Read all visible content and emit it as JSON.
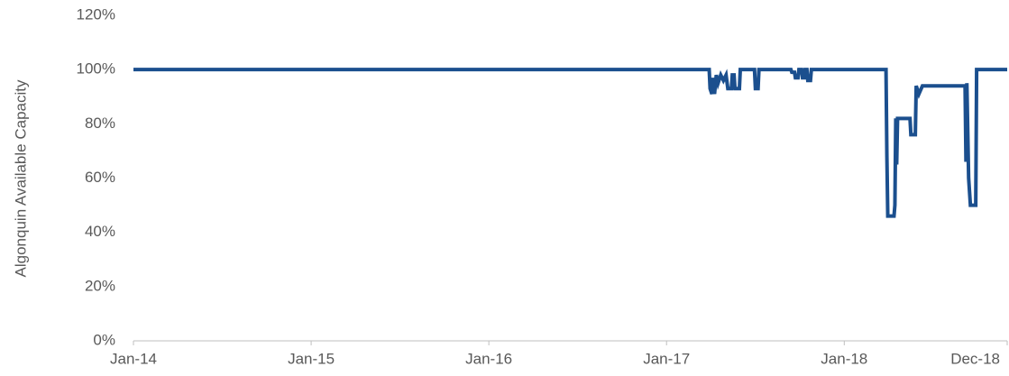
{
  "chart_data": {
    "type": "line",
    "y_axis_label": "Algonquin Available Capacity",
    "x": [
      2014,
      2017.24,
      2017.245,
      2017.255,
      2017.26,
      2017.27,
      2017.28,
      2017.29,
      2017.305,
      2017.32,
      2017.335,
      2017.345,
      2017.365,
      2017.37,
      2017.38,
      2017.385,
      2017.41,
      2017.415,
      2017.495,
      2017.5,
      2017.515,
      2017.52,
      2017.7,
      2017.705,
      2017.72,
      2017.725,
      2017.74,
      2017.745,
      2017.76,
      2017.765,
      2017.775,
      2017.78,
      2017.79,
      2017.795,
      2017.81,
      2017.815,
      2018.235,
      2018.24,
      2018.245,
      2018.28,
      2018.285,
      2018.29,
      2018.295,
      2018.3,
      2018.37,
      2018.375,
      2018.4,
      2018.405,
      2018.42,
      2018.44,
      2018.68,
      2018.685,
      2018.69,
      2018.7,
      2018.71,
      2018.74,
      2018.745,
      2018.917
    ],
    "series": [
      {
        "color": "#1b4f8e",
        "values": [
          100,
          100,
          93,
          91,
          97,
          91,
          98,
          95,
          98,
          96,
          98,
          93,
          93,
          98,
          98,
          93,
          93,
          100,
          100,
          93,
          93,
          100,
          100,
          99,
          99,
          97,
          97,
          100,
          100,
          97,
          97,
          100,
          100,
          96,
          96,
          100,
          100,
          68,
          46,
          46,
          50,
          82,
          65,
          82,
          82,
          76,
          76,
          94,
          91,
          94,
          94,
          66,
          95,
          60,
          50,
          50,
          100,
          100
        ]
      }
    ],
    "xlim": [
      2014,
      2018.917
    ],
    "xticks": [
      {
        "value": 2014,
        "label": "Jan-14"
      },
      {
        "value": 2015,
        "label": "Jan-15"
      },
      {
        "value": 2016,
        "label": "Jan-16"
      },
      {
        "value": 2017,
        "label": "Jan-17"
      },
      {
        "value": 2018,
        "label": "Jan-18"
      },
      {
        "value": 2018.917,
        "label": "Dec-18"
      }
    ],
    "ylim": [
      0,
      120
    ],
    "yticks": [
      {
        "value": 0,
        "label": "0%"
      },
      {
        "value": 20,
        "label": "20%"
      },
      {
        "value": 40,
        "label": "40%"
      },
      {
        "value": 60,
        "label": "60%"
      },
      {
        "value": 80,
        "label": "80%"
      },
      {
        "value": 100,
        "label": "100%"
      },
      {
        "value": 120,
        "label": "120%"
      }
    ],
    "grid": false
  }
}
